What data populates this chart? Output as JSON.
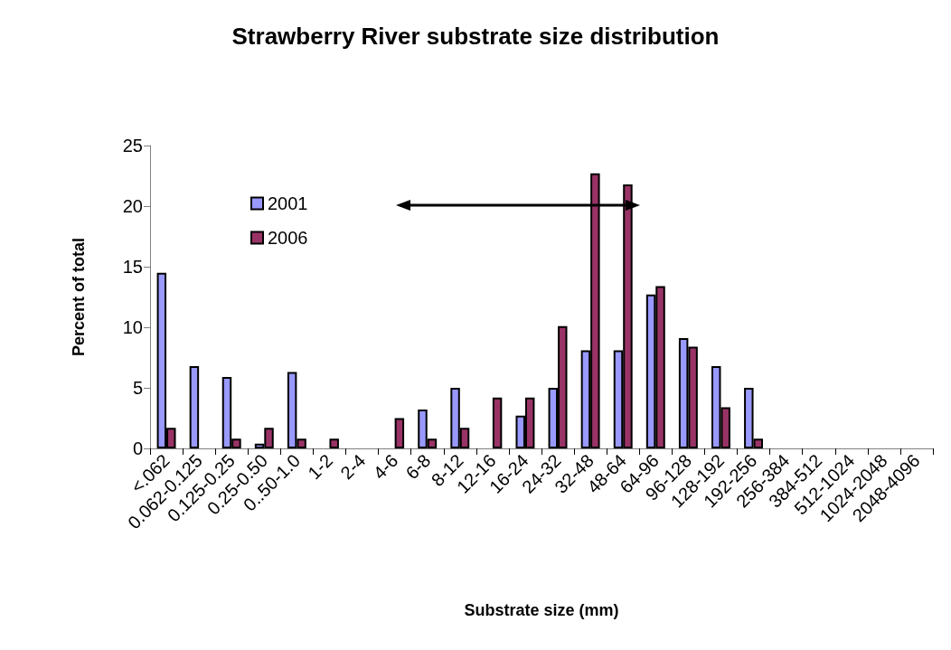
{
  "chart_data": {
    "type": "bar",
    "title": "Strawberry River substrate size distribution",
    "xlabel": "Substrate size (mm)",
    "ylabel": "Percent of total",
    "categories": [
      "<.062",
      "0.062-0.125",
      "0.125-0.25",
      "0.25-0.50",
      "0..50-1.0",
      "1-2",
      "2-4",
      "4-6",
      "6-8",
      "8-12",
      "12-16",
      "16-24",
      "24-32",
      "32-48",
      "48-64",
      "64-96",
      "96-128",
      "128-192",
      "192-256",
      "256-384",
      "384-512",
      "512-1024",
      "1024-2048",
      "2048-4096"
    ],
    "series": [
      {
        "name": "2001",
        "color": "#9999ff",
        "values": [
          14.5,
          6.8,
          5.9,
          0.4,
          6.3,
          0,
          0,
          0,
          3.2,
          5.0,
          0,
          2.7,
          5.0,
          8.1,
          8.1,
          12.7,
          9.1,
          6.8,
          5.0,
          0,
          0,
          0,
          0,
          0
        ]
      },
      {
        "name": "2006",
        "color": "#993366",
        "values": [
          1.7,
          0,
          0.8,
          1.7,
          0.8,
          0.8,
          0,
          2.5,
          0.8,
          1.7,
          4.2,
          4.2,
          10.1,
          22.7,
          21.8,
          13.4,
          8.4,
          3.4,
          0.8,
          0,
          0,
          0,
          0,
          0
        ]
      }
    ],
    "ylim": [
      0,
      25
    ],
    "yticks": [
      0,
      5,
      10,
      15,
      20,
      25
    ],
    "grid": false,
    "legend": "top left"
  }
}
